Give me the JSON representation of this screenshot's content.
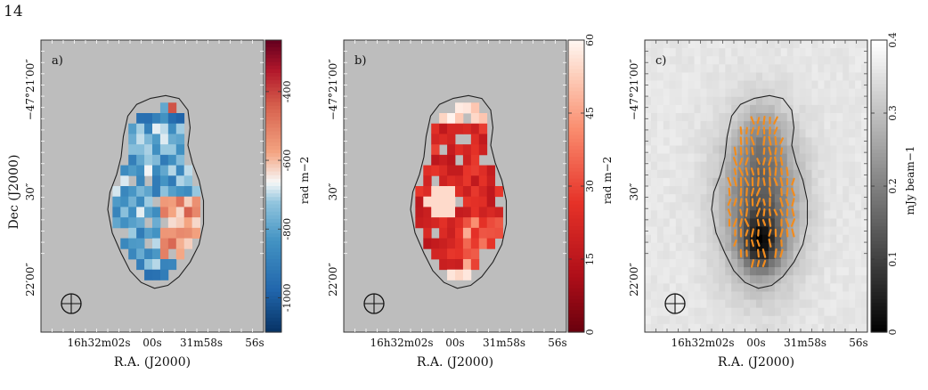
{
  "page": {
    "number": "14"
  },
  "figure": {
    "panels": [
      {
        "id": "a",
        "label": "a)",
        "map_type": "faraday-depth",
        "colormap": "diverging-red-blue",
        "colorbar": {
          "label": "rad m−2",
          "ticks": [
            "-400",
            "-600",
            "-800",
            "-1000"
          ],
          "tick_values": [
            -400,
            -600,
            -800,
            -1000
          ],
          "range": [
            -1100,
            -250
          ]
        },
        "xlabel": "R.A. (J2000)",
        "ylabel": "Dec (J2000)",
        "xticks": [
          "16h32m02s",
          "00s",
          "31m58s",
          "56s"
        ],
        "yticks": [
          "−47°21′00″",
          "30″",
          "22′00″"
        ],
        "has_vectors": false,
        "beam_symbol": true
      },
      {
        "id": "b",
        "label": "b)",
        "map_type": "faraday-depth-error",
        "colormap": "sequential-reds",
        "colorbar": {
          "label": "rad m−2",
          "ticks": [
            "60",
            "45",
            "30",
            "15",
            "0"
          ],
          "tick_values": [
            60,
            45,
            30,
            15,
            0
          ],
          "range": [
            0,
            60
          ]
        },
        "xlabel": "R.A. (J2000)",
        "ylabel": "",
        "xticks": [
          "16h32m02s",
          "00s",
          "31m58s",
          "56s"
        ],
        "yticks": [
          "−47°21′00″",
          "30″",
          "22′00″"
        ],
        "has_vectors": false,
        "beam_symbol": true
      },
      {
        "id": "c",
        "label": "c)",
        "map_type": "intensity",
        "colormap": "greyscale",
        "colorbar": {
          "label": "mJy beam−1",
          "ticks": [
            "0.4",
            "0.3",
            "0.2",
            "0.1",
            "0"
          ],
          "tick_values": [
            0.4,
            0.3,
            0.2,
            0.1,
            0
          ],
          "range": [
            0,
            0.4
          ]
        },
        "xlabel": "R.A. (J2000)",
        "ylabel": "",
        "xticks": [
          "16h32m02s",
          "00s",
          "31m58s",
          "56s"
        ],
        "yticks": [
          "−47°21′00″",
          "30″",
          "22′00″"
        ],
        "has_vectors": true,
        "vector_color": "#f28c1e",
        "beam_symbol": true
      }
    ],
    "colors": {
      "masked_background": "#bdbdbd",
      "contour": "#222222",
      "frame": "#333333"
    }
  }
}
